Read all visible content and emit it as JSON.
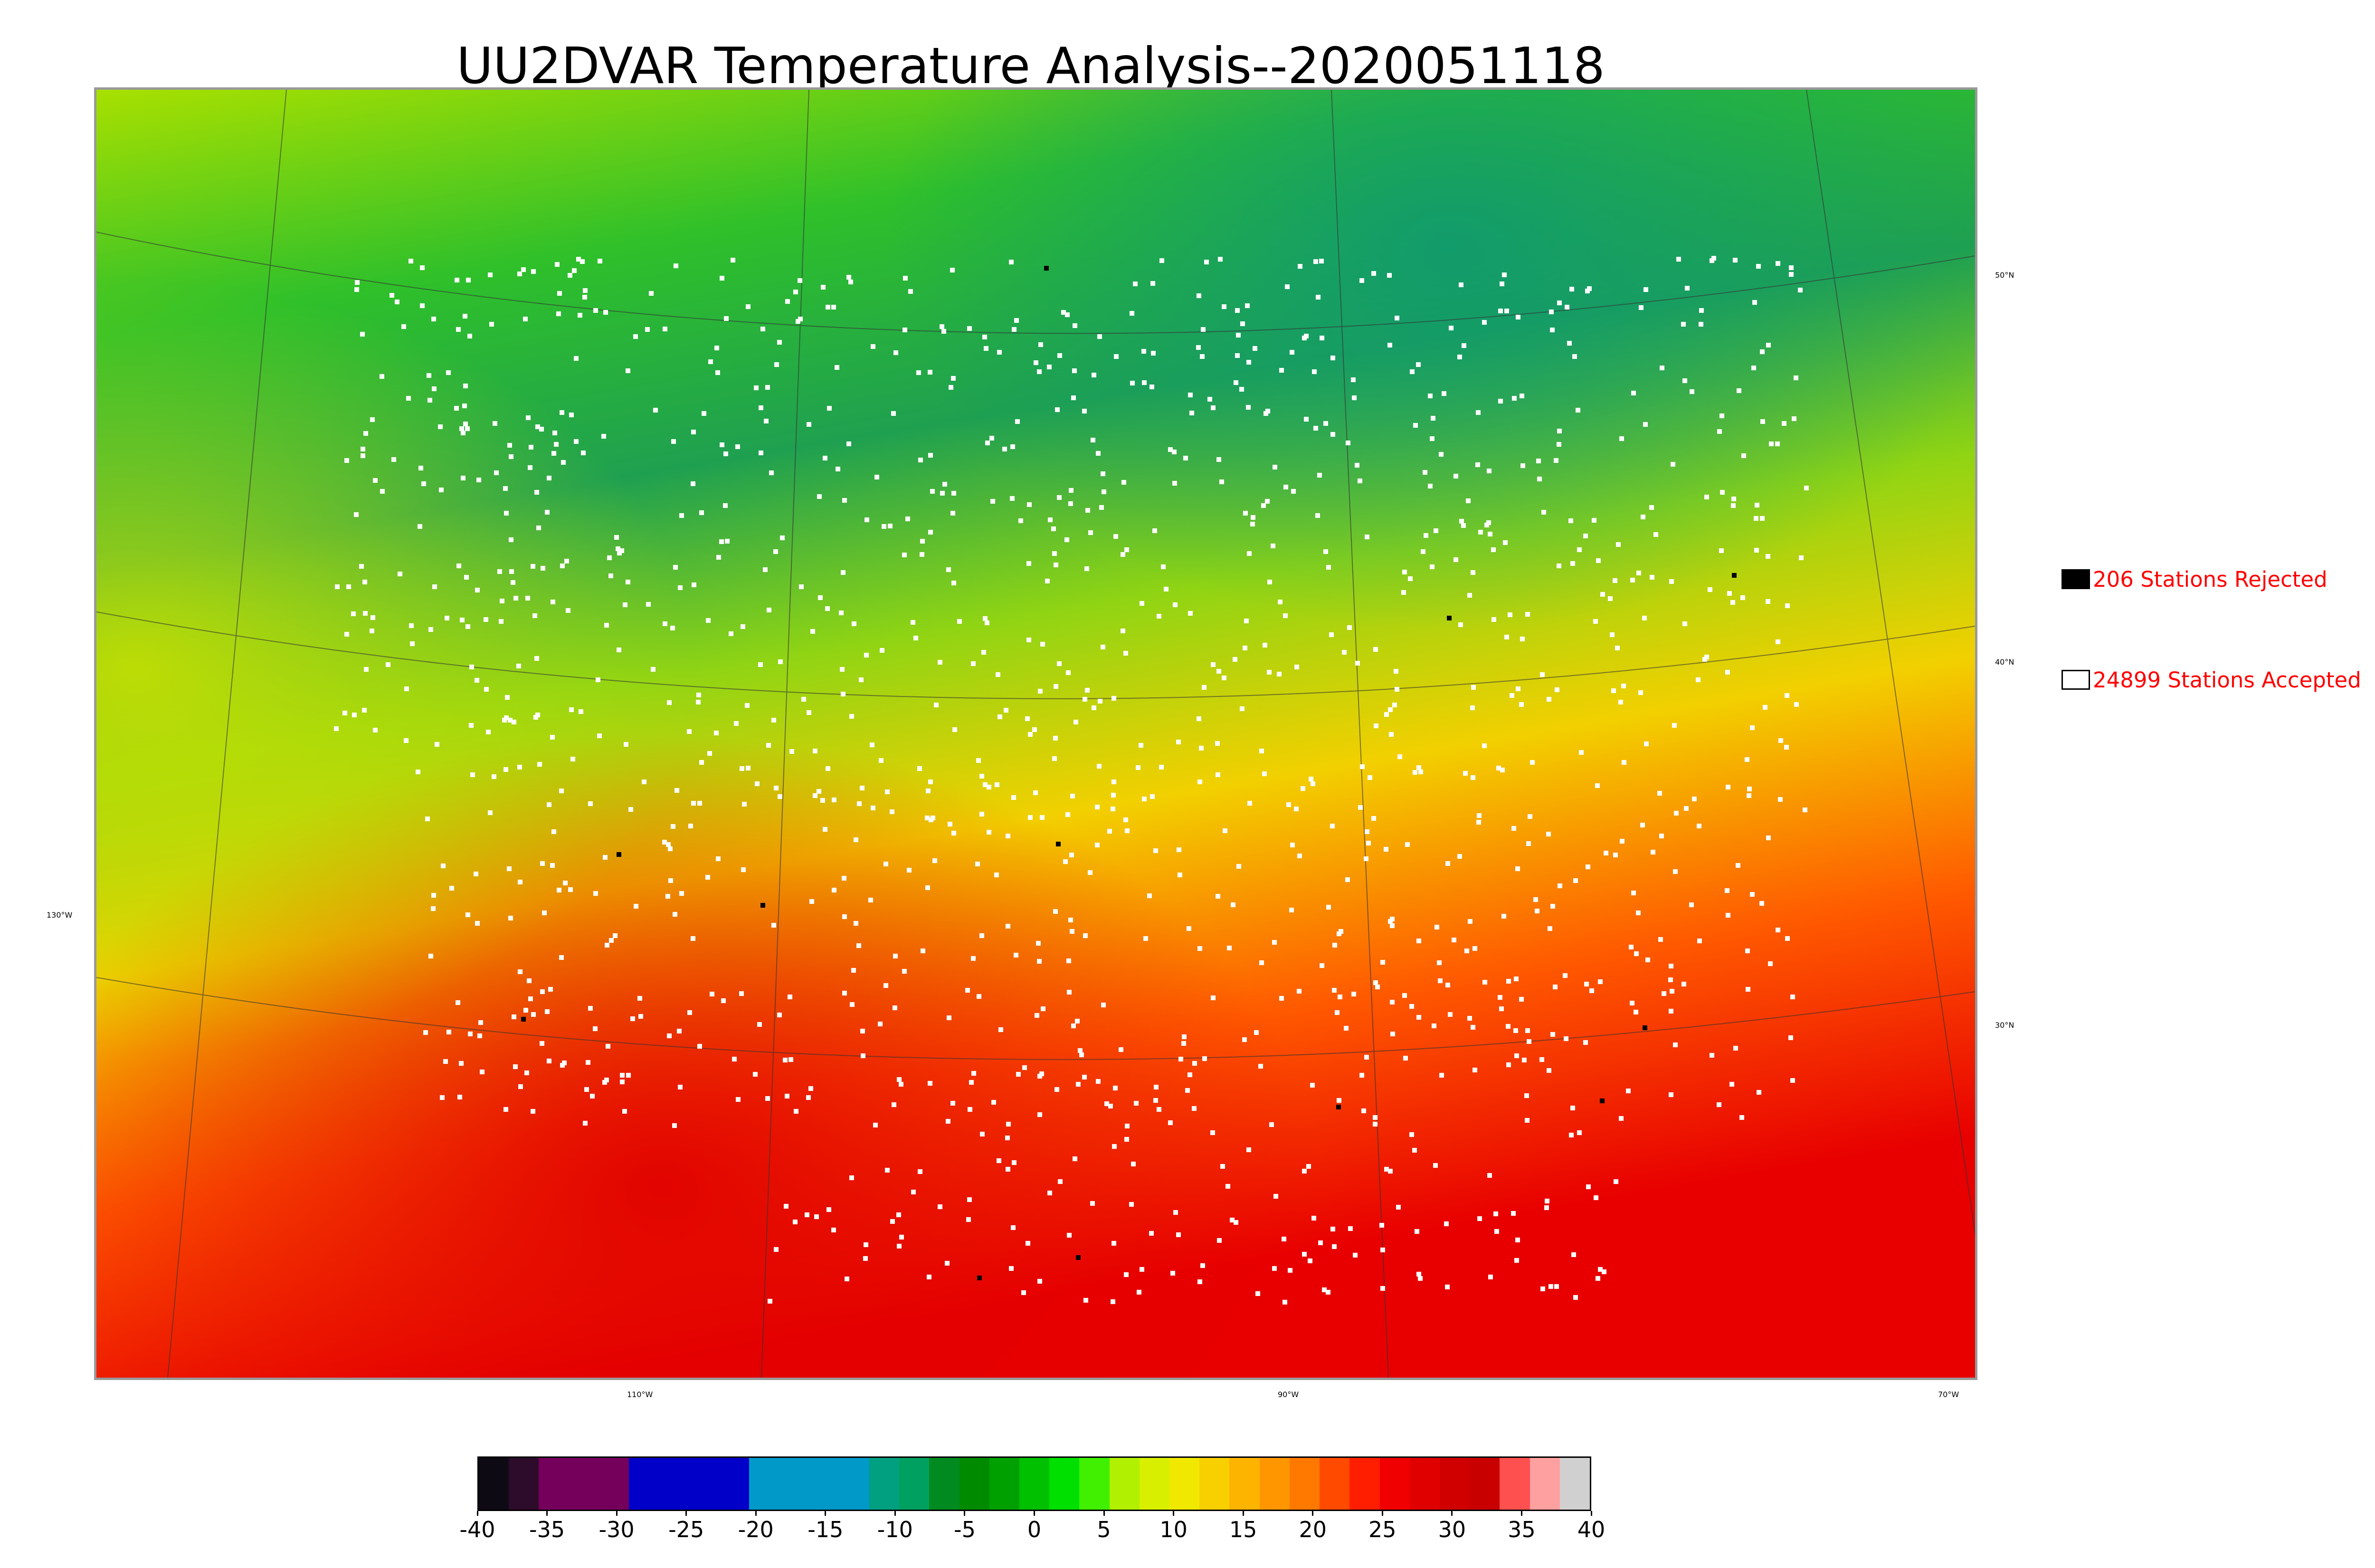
{
  "title": "UU2DVAR Temperature Analysis--2020051118",
  "legend": {
    "rejected": {
      "label": "206 Stations Rejected",
      "color": "#000000",
      "count": 206
    },
    "accepted": {
      "label": "24899 Stations Accepted",
      "color": "#ffffff",
      "count": 24899
    }
  },
  "map": {
    "background_gradient": [
      "#a8e000",
      "#2fc02a",
      "#1fa050",
      "#8fd414",
      "#f2d000",
      "#ff5a00",
      "#e80000"
    ],
    "longitude_labels": [
      "130°W",
      "110°W",
      "90°W",
      "70°W"
    ],
    "latitude_labels": [
      "50°N",
      "40°N",
      "30°N"
    ]
  },
  "colorbar": {
    "ticks": [
      "-40",
      "-35",
      "-30",
      "-25",
      "-20",
      "-15",
      "-10",
      "-5",
      "0",
      "5",
      "10",
      "15",
      "20",
      "25",
      "30",
      "35",
      "40"
    ],
    "range": [
      -40,
      40
    ],
    "colors": [
      "#0e0a14",
      "#2c0c2a",
      "#74005c",
      "#74005c",
      "#74005c",
      "#0000c8",
      "#0000c8",
      "#0000c8",
      "#0000c8",
      "#0099c8",
      "#0099c8",
      "#0099c8",
      "#0099c8",
      "#00a080",
      "#00a060",
      "#008a20",
      "#008a00",
      "#00a000",
      "#00c000",
      "#00e000",
      "#40f000",
      "#b0f000",
      "#d8f000",
      "#f0e800",
      "#f8d000",
      "#fcb400",
      "#ff9600",
      "#ff7800",
      "#ff4a00",
      "#ff1e00",
      "#f00000",
      "#e00000",
      "#d00000",
      "#c80000",
      "#ff5050",
      "#ffa0a0",
      "#d0d0d0"
    ]
  }
}
